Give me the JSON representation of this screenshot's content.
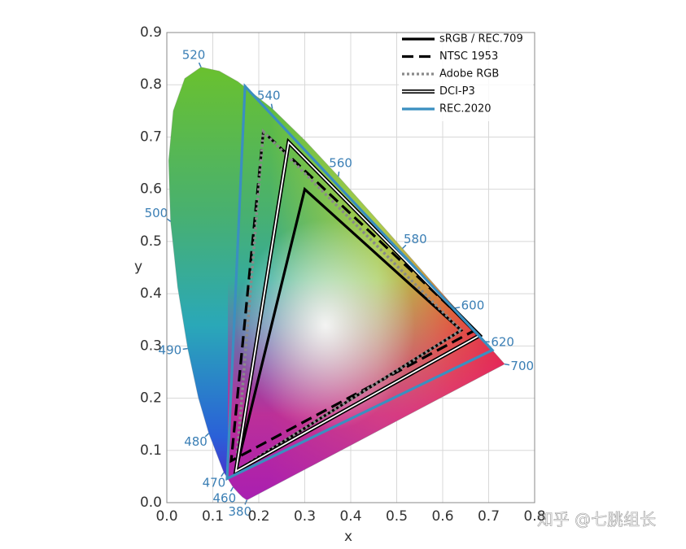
{
  "chart_data": {
    "type": "gamut",
    "x_label": "x",
    "y_label": "y",
    "xlim": [
      0,
      0.8
    ],
    "ylim": [
      0,
      0.9
    ],
    "xticks": [
      {
        "value": 0,
        "label": "0.0"
      },
      0.1,
      0.2,
      0.3,
      0.4,
      0.5,
      0.6,
      0.7,
      0.8
    ],
    "yticks": [
      {
        "value": 0,
        "label": "0.0"
      },
      0.1,
      0.2,
      0.3,
      0.4,
      0.5,
      0.6,
      0.7,
      0.8,
      0.9
    ],
    "grid": true,
    "legend": "upper right",
    "closed": true,
    "locus": {
      "x": [
        0.1741,
        0.1644,
        0.1566,
        0.144,
        0.1241,
        0.0913,
        0.0687,
        0.0454,
        0.0235,
        0.0082,
        0.0039,
        0.0139,
        0.0389,
        0.0743,
        0.1142,
        0.1547,
        0.2296,
        0.3016,
        0.3731,
        0.4441,
        0.5125,
        0.5752,
        0.627,
        0.6915,
        0.7347
      ],
      "values": [
        0.005,
        0.0109,
        0.0177,
        0.0297,
        0.0578,
        0.1327,
        0.2007,
        0.295,
        0.4127,
        0.5384,
        0.6548,
        0.7502,
        0.812,
        0.8338,
        0.8262,
        0.8059,
        0.7543,
        0.6923,
        0.6245,
        0.5547,
        0.4866,
        0.4242,
        0.3725,
        0.3083,
        0.2653
      ]
    },
    "annotations": [
      {
        "text": "380",
        "x": 0.1741,
        "y": 0.005
      },
      {
        "text": "460",
        "x": 0.144,
        "y": 0.0297
      },
      {
        "text": "470",
        "x": 0.1241,
        "y": 0.0578
      },
      {
        "text": "480",
        "x": 0.0913,
        "y": 0.1327
      },
      {
        "text": "490",
        "x": 0.0454,
        "y": 0.295
      },
      {
        "text": "500",
        "x": 0.0082,
        "y": 0.5384
      },
      {
        "text": "520",
        "x": 0.0743,
        "y": 0.8338
      },
      {
        "text": "540",
        "x": 0.2296,
        "y": 0.7543
      },
      {
        "text": "560",
        "x": 0.3731,
        "y": 0.6245
      },
      {
        "text": "580",
        "x": 0.5125,
        "y": 0.4866
      },
      {
        "text": "600",
        "x": 0.627,
        "y": 0.3725
      },
      {
        "text": "620",
        "x": 0.6915,
        "y": 0.3083
      },
      {
        "text": "700",
        "x": 0.7347,
        "y": 0.2653
      }
    ],
    "annotation_color": "#3b7fb5",
    "series": [
      {
        "name": "sRGB / REC.709",
        "color": "#000000",
        "style": "solid",
        "x": [
          0.64,
          0.3,
          0.15
        ],
        "values": [
          0.33,
          0.6,
          0.06
        ]
      },
      {
        "name": "NTSC 1953",
        "color": "#000000",
        "style": "dashed",
        "x": [
          0.67,
          0.21,
          0.14
        ],
        "values": [
          0.33,
          0.71,
          0.08
        ]
      },
      {
        "name": "Adobe RGB",
        "color": "#8a8a8a",
        "style": "dotted",
        "x": [
          0.64,
          0.21,
          0.15
        ],
        "values": [
          0.33,
          0.71,
          0.06
        ]
      },
      {
        "name": "DCI-P3",
        "color": "#000000",
        "style": "double",
        "x": [
          0.68,
          0.265,
          0.15
        ],
        "values": [
          0.32,
          0.69,
          0.06
        ]
      },
      {
        "name": "REC.2020",
        "color": "#3a8fc0",
        "style": "solid",
        "x": [
          0.708,
          0.17,
          0.131
        ],
        "values": [
          0.292,
          0.797,
          0.046
        ]
      }
    ]
  },
  "watermark": "知乎 @七朓组长"
}
